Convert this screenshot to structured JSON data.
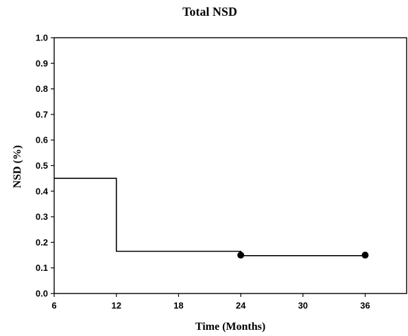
{
  "chart_data": {
    "type": "line",
    "title": "Total NSD",
    "xlabel": "Time (Months)",
    "ylabel": "NSD (%)",
    "xlim": [
      6,
      40
    ],
    "ylim": [
      0.0,
      1.0
    ],
    "xticks": [
      6,
      12,
      18,
      24,
      30,
      36
    ],
    "yticks": [
      0.0,
      0.1,
      0.2,
      0.3,
      0.4,
      0.5,
      0.6,
      0.7,
      0.8,
      0.9,
      1.0
    ],
    "ytick_labels": [
      "0.0",
      "0.1",
      "0.2",
      "0.3",
      "0.4",
      "0.5",
      "0.6",
      "0.7",
      "0.8",
      "0.9",
      "1.0"
    ],
    "xtick_labels": [
      "6",
      "12",
      "18",
      "24",
      "30",
      "36"
    ],
    "grid": false,
    "series": [
      {
        "step": true,
        "color": "#000000",
        "points": [
          {
            "x": 6,
            "y": 0.45
          },
          {
            "x": 12,
            "y": 0.45
          },
          {
            "x": 12,
            "y": 0.165
          },
          {
            "x": 24,
            "y": 0.165
          },
          {
            "x": 24,
            "y": 0.148
          },
          {
            "x": 36,
            "y": 0.148
          }
        ],
        "markers": [
          {
            "x": 24,
            "y": 0.15
          },
          {
            "x": 36,
            "y": 0.15
          }
        ]
      }
    ]
  }
}
